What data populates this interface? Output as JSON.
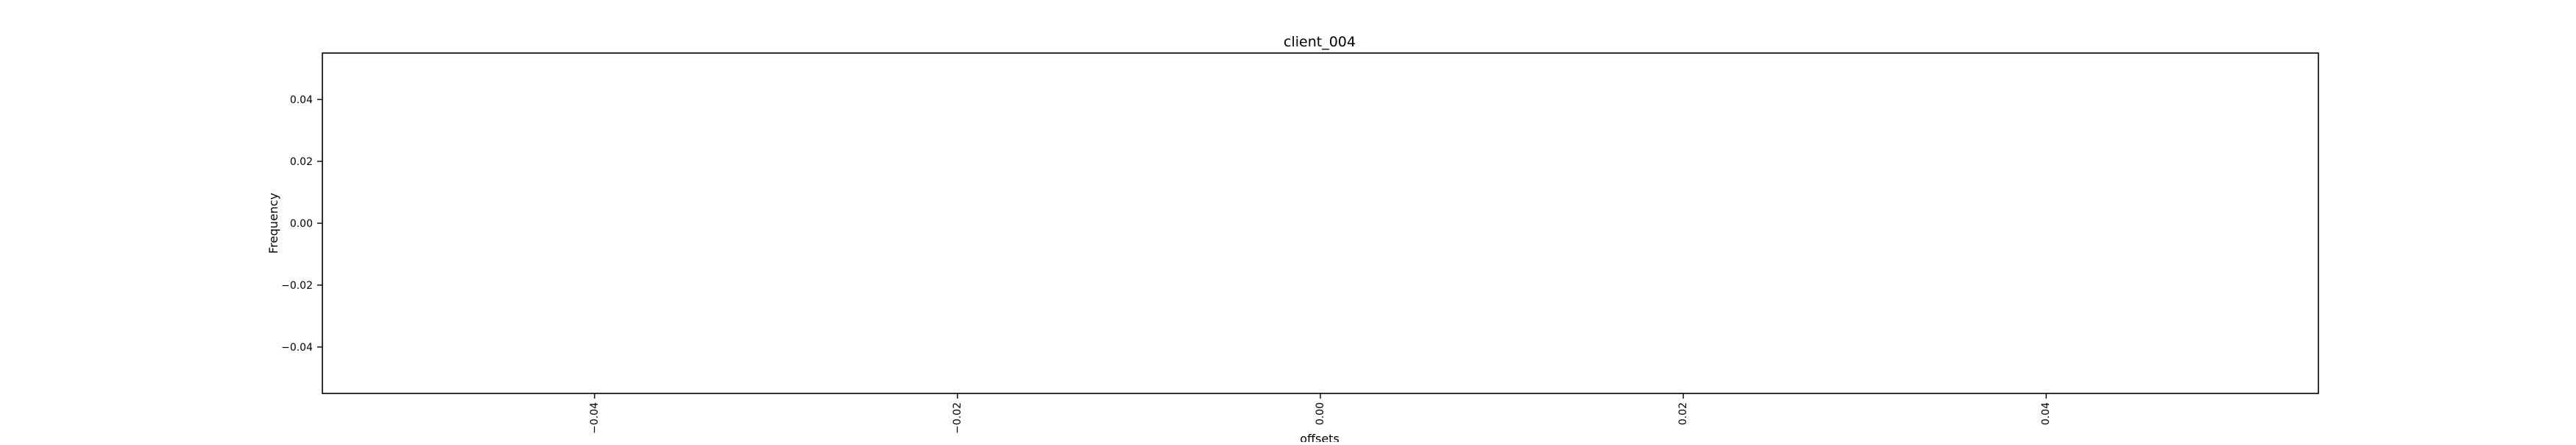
{
  "chart_data": {
    "type": "bar",
    "title": "client_004",
    "xlabel": "offsets",
    "ylabel": "Frequency",
    "xlim": [
      -0.055,
      0.055
    ],
    "ylim": [
      -0.055,
      0.055
    ],
    "x_ticks": [
      -0.04,
      -0.02,
      0.0,
      0.02,
      0.04
    ],
    "x_tick_labels": [
      "−0.04",
      "−0.02",
      "0.00",
      "0.02",
      "0.04"
    ],
    "y_ticks": [
      -0.04,
      -0.02,
      0.0,
      0.02,
      0.04
    ],
    "y_tick_labels": [
      "−0.04",
      "−0.02",
      "0.00",
      "0.02",
      "0.04"
    ],
    "x_tick_rotation": "vertical",
    "grid": false,
    "legend": "none",
    "series": [],
    "colors": {
      "frame": "#000000",
      "background": "#ffffff"
    }
  }
}
